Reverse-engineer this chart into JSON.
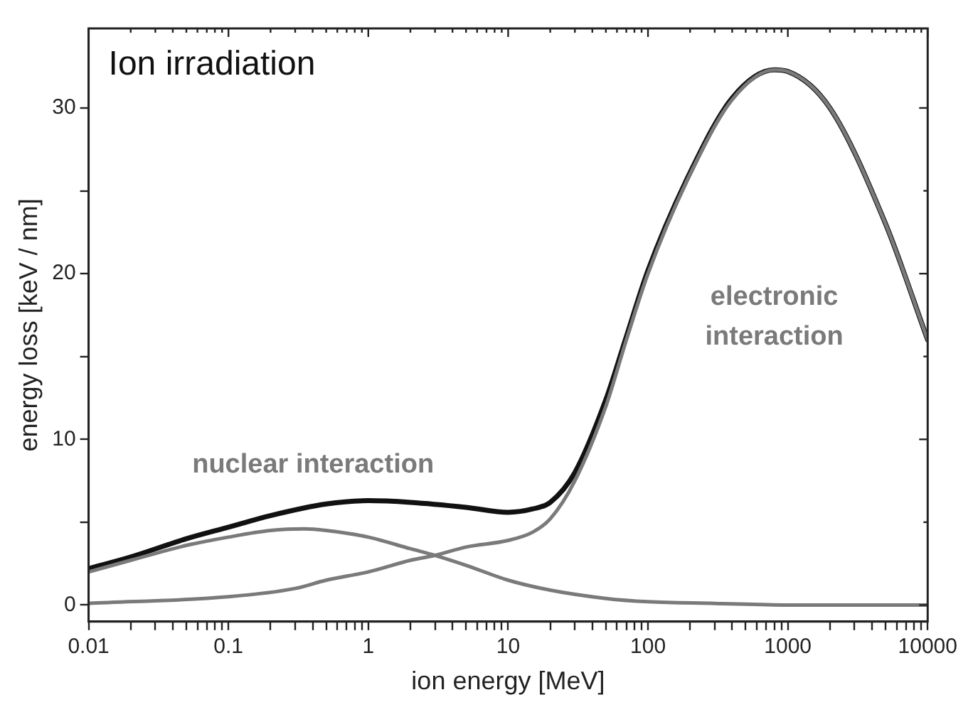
{
  "chart_data": {
    "type": "line",
    "title": "Ion irradiation",
    "xlabel": "ion energy [MeV]",
    "ylabel": "energy loss [keV / nm]",
    "xlim": [
      0.01,
      10000
    ],
    "ylim": [
      -1,
      34.8
    ],
    "log": "x",
    "grid": false,
    "legend": false,
    "marker": "none",
    "line_style": "solid",
    "xticks": [
      0.01,
      {
        "value": 0.02,
        "label": null
      },
      {
        "value": 0.03,
        "label": null
      },
      {
        "value": 0.04,
        "label": null
      },
      {
        "value": 0.05,
        "label": null
      },
      {
        "value": 0.06,
        "label": null
      },
      {
        "value": 0.07,
        "label": null
      },
      {
        "value": 0.08,
        "label": null
      },
      {
        "value": 0.09,
        "label": null
      },
      0.1,
      {
        "value": 0.2,
        "label": null
      },
      {
        "value": 0.3,
        "label": null
      },
      {
        "value": 0.4,
        "label": null
      },
      {
        "value": 0.5,
        "label": null
      },
      {
        "value": 0.6,
        "label": null
      },
      {
        "value": 0.7,
        "label": null
      },
      {
        "value": 0.8,
        "label": null
      },
      {
        "value": 0.9,
        "label": null
      },
      1,
      {
        "value": 2,
        "label": null
      },
      {
        "value": 3,
        "label": null
      },
      {
        "value": 4,
        "label": null
      },
      {
        "value": 5,
        "label": null
      },
      {
        "value": 6,
        "label": null
      },
      {
        "value": 7,
        "label": null
      },
      {
        "value": 8,
        "label": null
      },
      {
        "value": 9,
        "label": null
      },
      10,
      {
        "value": 20,
        "label": null
      },
      {
        "value": 30,
        "label": null
      },
      {
        "value": 40,
        "label": null
      },
      {
        "value": 50,
        "label": null
      },
      {
        "value": 60,
        "label": null
      },
      {
        "value": 70,
        "label": null
      },
      {
        "value": 80,
        "label": null
      },
      {
        "value": 90,
        "label": null
      },
      100,
      {
        "value": 200,
        "label": null
      },
      {
        "value": 300,
        "label": null
      },
      {
        "value": 400,
        "label": null
      },
      {
        "value": 500,
        "label": null
      },
      {
        "value": 600,
        "label": null
      },
      {
        "value": 700,
        "label": null
      },
      {
        "value": 800,
        "label": null
      },
      {
        "value": 900,
        "label": null
      },
      1000,
      {
        "value": 2000,
        "label": null
      },
      {
        "value": 3000,
        "label": null
      },
      {
        "value": 4000,
        "label": null
      },
      {
        "value": 5000,
        "label": null
      },
      {
        "value": 6000,
        "label": null
      },
      {
        "value": 7000,
        "label": null
      },
      {
        "value": 8000,
        "label": null
      },
      {
        "value": 9000,
        "label": null
      },
      10000
    ],
    "yticks": [
      0,
      {
        "value": 5,
        "label": null
      },
      10,
      {
        "value": 15,
        "label": null
      },
      20,
      {
        "value": 25,
        "label": null
      },
      30
    ],
    "series": [
      {
        "name": "nuclear interaction",
        "color": "#7a7a7a",
        "x": [
          0.01,
          0.02,
          0.05,
          0.1,
          0.2,
          0.35,
          0.5,
          1,
          2,
          3,
          5,
          10,
          20,
          50,
          100,
          300,
          1000,
          10000
        ],
        "values": [
          2.0,
          2.7,
          3.6,
          4.1,
          4.5,
          4.6,
          4.5,
          4.1,
          3.4,
          3.0,
          2.4,
          1.5,
          0.9,
          0.4,
          0.2,
          0.1,
          0,
          0
        ]
      },
      {
        "name": "electronic interaction",
        "color": "#7a7a7a",
        "x": [
          0.01,
          0.1,
          0.3,
          0.5,
          1,
          2,
          3,
          5,
          10,
          15,
          20,
          30,
          50,
          70,
          100,
          200,
          400,
          800,
          1000,
          2000,
          5000,
          10000
        ],
        "values": [
          0.1,
          0.5,
          1.0,
          1.5,
          2.0,
          2.7,
          3.0,
          3.5,
          3.9,
          4.4,
          5.2,
          7.5,
          12,
          16,
          20,
          26,
          30.5,
          32.3,
          32.2,
          30,
          23,
          16
        ]
      },
      {
        "color": "#111111",
        "x": [
          0.01,
          0.02,
          0.05,
          0.1,
          0.2,
          0.5,
          1,
          2,
          5,
          10,
          15,
          20,
          30,
          50,
          70,
          100,
          200,
          400,
          800,
          1000,
          2000,
          5000,
          10000
        ],
        "values": [
          2.2,
          2.9,
          4.0,
          4.7,
          5.4,
          6.1,
          6.3,
          6.2,
          5.9,
          5.6,
          5.8,
          6.2,
          8.0,
          12.4,
          16.2,
          20.2,
          26.1,
          30.6,
          32.3,
          32.2,
          30,
          23,
          16
        ]
      }
    ]
  }
}
